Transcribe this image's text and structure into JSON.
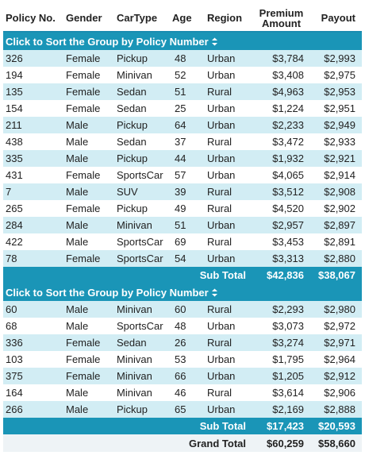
{
  "headers": {
    "policy_no": "Policy No.",
    "gender": "Gender",
    "car_type": "CarType",
    "age": "Age",
    "region": "Region",
    "premium_line1": "Premium",
    "premium_line2": "Amount",
    "payout": "Payout"
  },
  "groups": [
    {
      "label": "Click to Sort the Group by Policy Number",
      "rows": [
        {
          "policy": "326",
          "gender": "Female",
          "car": "Pickup",
          "age": "48",
          "region": "Urban",
          "premium": "$3,784",
          "payout": "$2,993"
        },
        {
          "policy": "194",
          "gender": "Female",
          "car": "Minivan",
          "age": "52",
          "region": "Urban",
          "premium": "$3,408",
          "payout": "$2,975"
        },
        {
          "policy": "135",
          "gender": "Female",
          "car": "Sedan",
          "age": "51",
          "region": "Rural",
          "premium": "$4,963",
          "payout": "$2,953"
        },
        {
          "policy": "154",
          "gender": "Female",
          "car": "Sedan",
          "age": "25",
          "region": "Urban",
          "premium": "$1,224",
          "payout": "$2,951"
        },
        {
          "policy": "211",
          "gender": "Male",
          "car": "Pickup",
          "age": "64",
          "region": "Urban",
          "premium": "$2,233",
          "payout": "$2,949"
        },
        {
          "policy": "438",
          "gender": "Male",
          "car": "Sedan",
          "age": "37",
          "region": "Rural",
          "premium": "$3,472",
          "payout": "$2,933"
        },
        {
          "policy": "335",
          "gender": "Male",
          "car": "Pickup",
          "age": "44",
          "region": "Urban",
          "premium": "$1,932",
          "payout": "$2,921"
        },
        {
          "policy": "431",
          "gender": "Female",
          "car": "SportsCar",
          "age": "57",
          "region": "Urban",
          "premium": "$4,065",
          "payout": "$2,914"
        },
        {
          "policy": "7",
          "gender": "Male",
          "car": "SUV",
          "age": "39",
          "region": "Rural",
          "premium": "$3,512",
          "payout": "$2,908"
        },
        {
          "policy": "265",
          "gender": "Female",
          "car": "Pickup",
          "age": "49",
          "region": "Rural",
          "premium": "$4,520",
          "payout": "$2,902"
        },
        {
          "policy": "284",
          "gender": "Male",
          "car": "Minivan",
          "age": "51",
          "region": "Urban",
          "premium": "$2,957",
          "payout": "$2,897"
        },
        {
          "policy": "422",
          "gender": "Male",
          "car": "SportsCar",
          "age": "69",
          "region": "Rural",
          "premium": "$3,453",
          "payout": "$2,891"
        },
        {
          "policy": "78",
          "gender": "Female",
          "car": "SportsCar",
          "age": "54",
          "region": "Urban",
          "premium": "$3,313",
          "payout": "$2,880"
        }
      ],
      "subtotal": {
        "label": "Sub Total",
        "premium": "$42,836",
        "payout": "$38,067"
      }
    },
    {
      "label": "Click to Sort the Group by Policy Number",
      "rows": [
        {
          "policy": "60",
          "gender": "Male",
          "car": "Minivan",
          "age": "60",
          "region": "Rural",
          "premium": "$2,293",
          "payout": "$2,980"
        },
        {
          "policy": "68",
          "gender": "Male",
          "car": "SportsCar",
          "age": "48",
          "region": "Urban",
          "premium": "$3,073",
          "payout": "$2,972"
        },
        {
          "policy": "336",
          "gender": "Female",
          "car": "Sedan",
          "age": "26",
          "region": "Rural",
          "premium": "$3,274",
          "payout": "$2,971"
        },
        {
          "policy": "103",
          "gender": "Female",
          "car": "Minivan",
          "age": "53",
          "region": "Urban",
          "premium": "$1,795",
          "payout": "$2,964"
        },
        {
          "policy": "375",
          "gender": "Female",
          "car": "Minivan",
          "age": "66",
          "region": "Urban",
          "premium": "$1,205",
          "payout": "$2,912"
        },
        {
          "policy": "164",
          "gender": "Male",
          "car": "Minivan",
          "age": "46",
          "region": "Rural",
          "premium": "$3,614",
          "payout": "$2,906"
        },
        {
          "policy": "266",
          "gender": "Male",
          "car": "Pickup",
          "age": "65",
          "region": "Urban",
          "premium": "$2,169",
          "payout": "$2,888"
        }
      ],
      "subtotal": {
        "label": "Sub Total",
        "premium": "$17,423",
        "payout": "$20,593"
      }
    }
  ],
  "grand_total": {
    "label": "Grand Total",
    "premium": "$60,259",
    "payout": "$58,660"
  },
  "colors": {
    "header_band": "#1a95b7",
    "alt_row": "#d2edf4",
    "grand_row": "#eef3f6"
  },
  "icons": {
    "sort": "sort-updown-icon"
  }
}
